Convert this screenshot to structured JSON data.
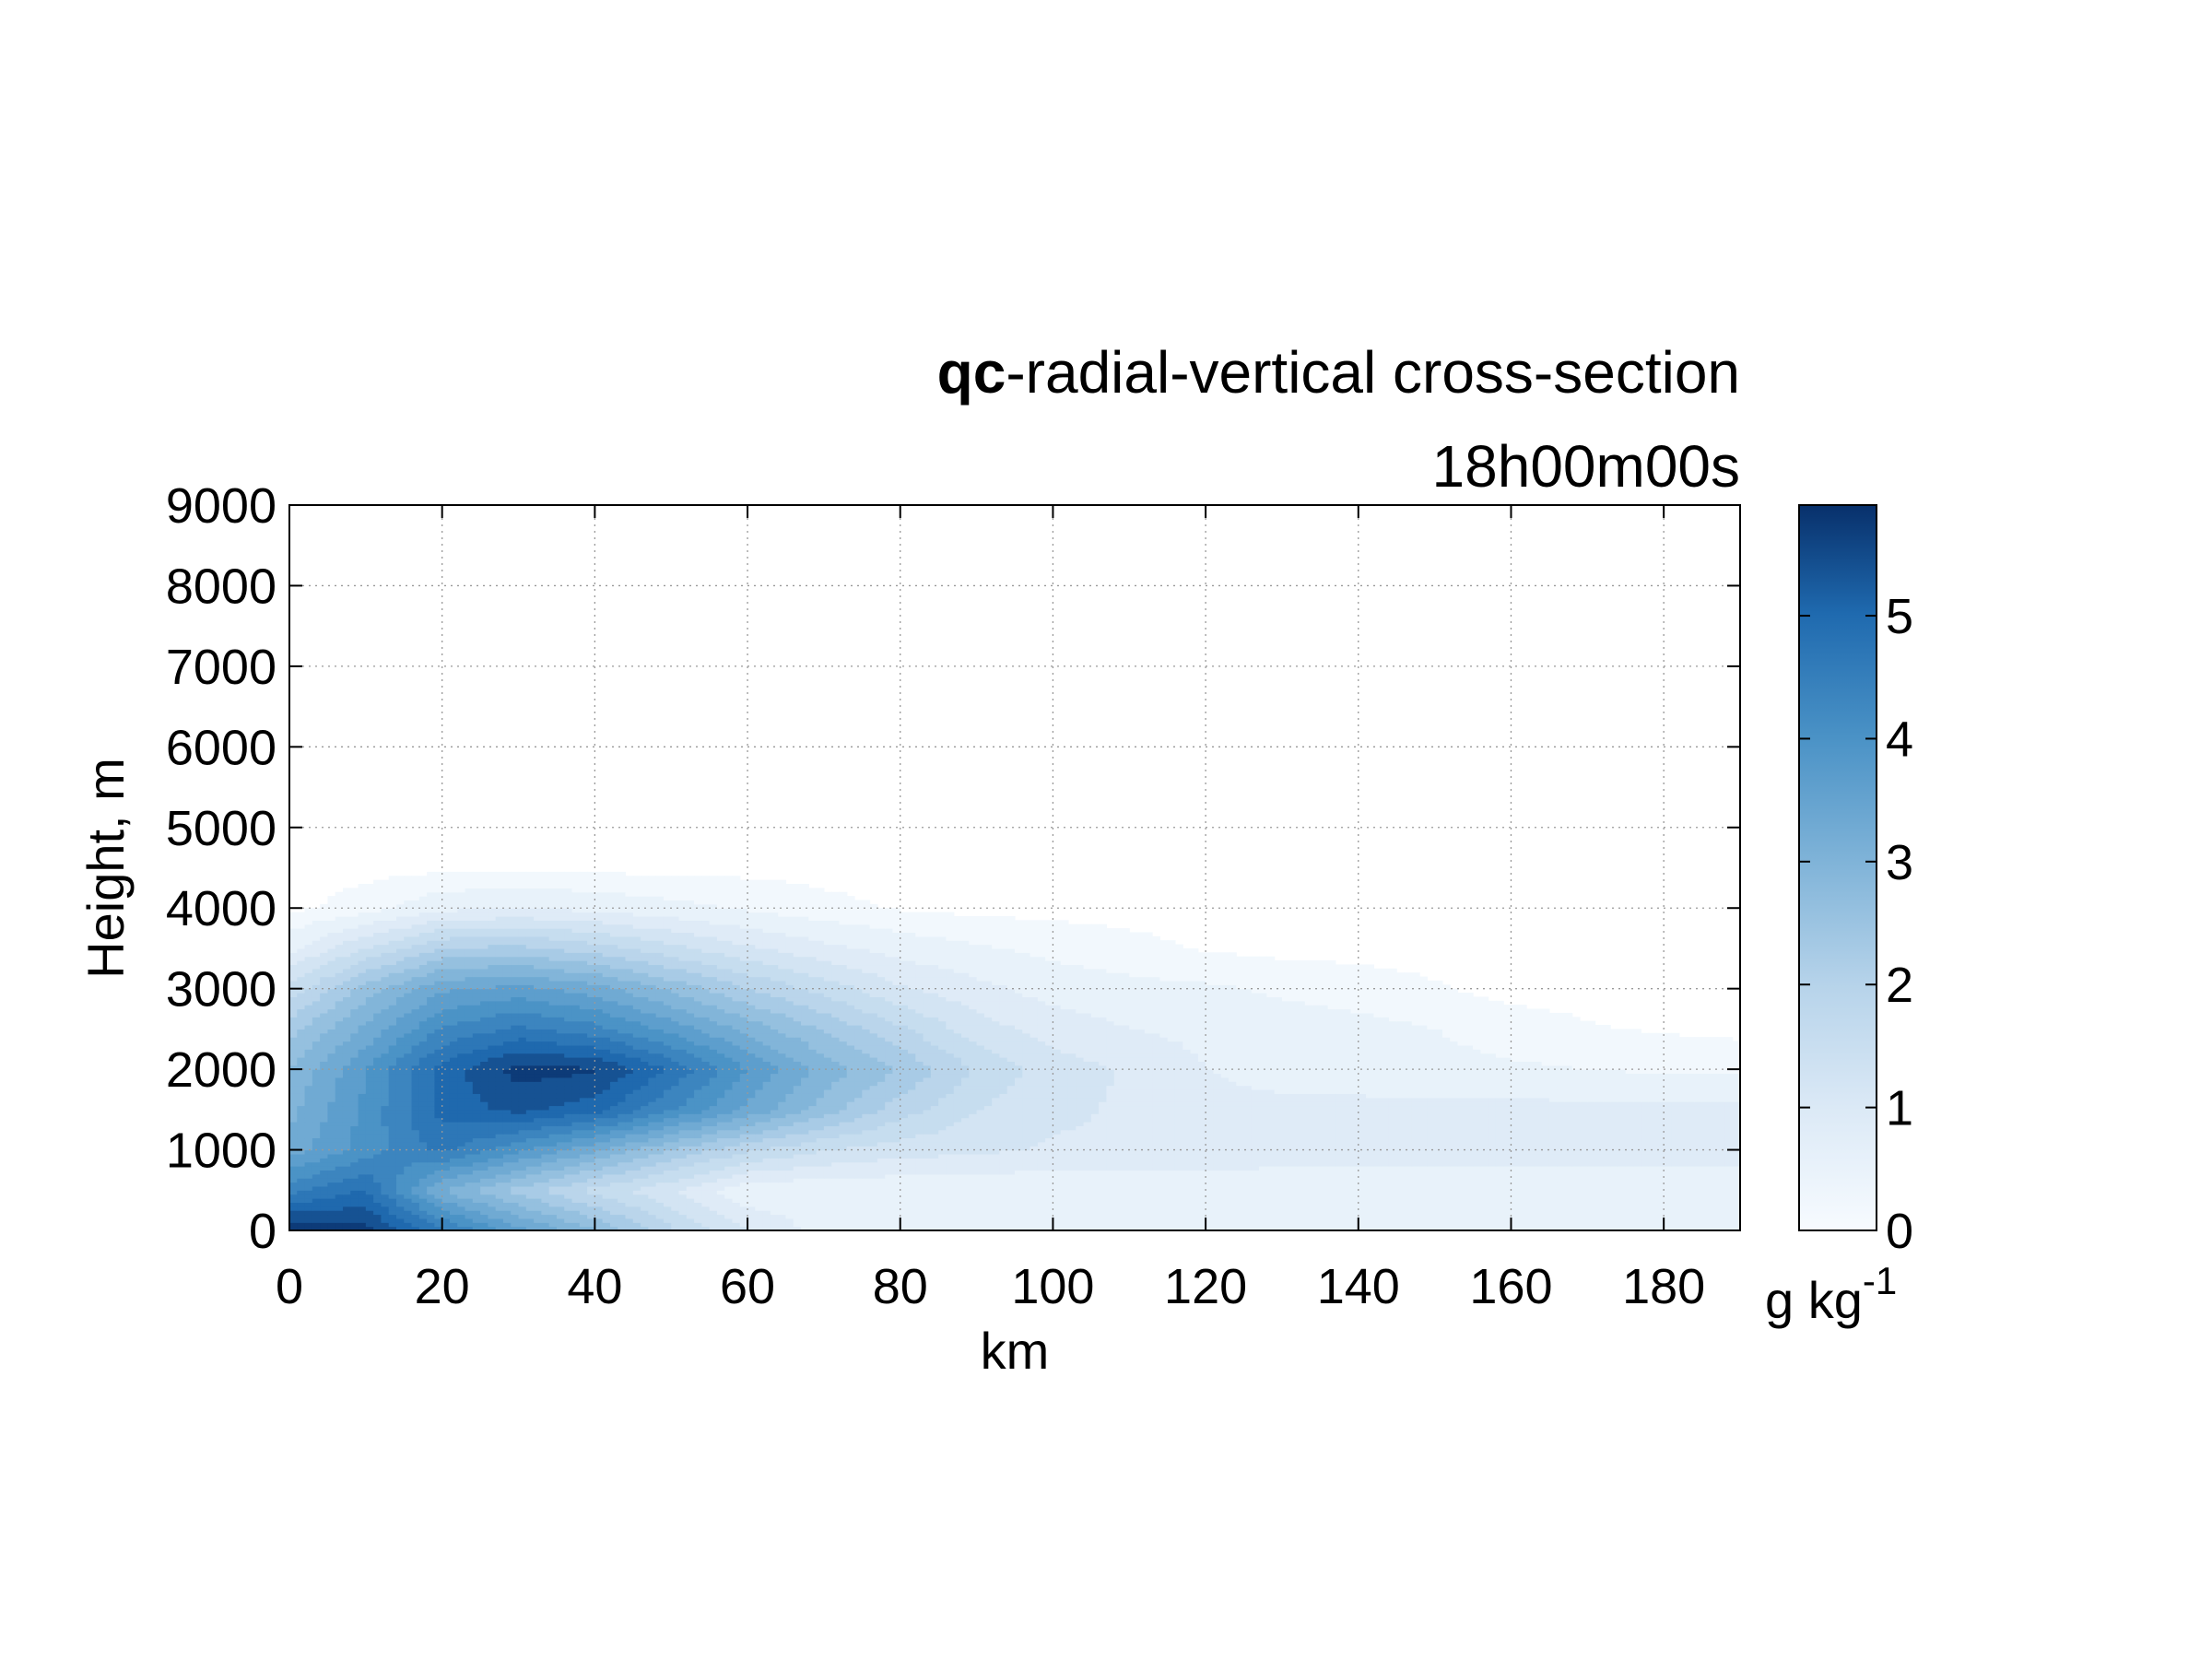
{
  "chart_data": {
    "type": "contour",
    "title_bold": "qc",
    "title_rest": "-radial-vertical cross-section",
    "subtitle": "18h00m00s",
    "xlabel": "km",
    "ylabel": "Height, m",
    "xlim": [
      0,
      190
    ],
    "ylim": [
      0,
      9000
    ],
    "xticks": [
      0,
      20,
      40,
      60,
      80,
      100,
      120,
      140,
      160,
      180
    ],
    "yticks": [
      0,
      1000,
      2000,
      3000,
      4000,
      5000,
      6000,
      7000,
      8000,
      9000
    ],
    "grid": true,
    "colorbar": {
      "label": "g kg",
      "label_superscript": "-1",
      "range": [
        0,
        5.9
      ],
      "ticks": [
        0,
        1,
        2,
        3,
        4,
        5
      ],
      "color_low": "#f7fbff",
      "color_high": "#08306b"
    },
    "x": [
      0,
      10,
      20,
      30,
      40,
      50,
      60,
      70,
      80,
      90,
      100,
      110,
      120,
      130,
      140,
      150,
      160,
      170,
      180,
      190
    ],
    "y": [
      0,
      500,
      1000,
      1500,
      2000,
      2500,
      3000,
      3500,
      4000,
      4500
    ],
    "values": [
      [
        5.9,
        5.7,
        4.6,
        3.6,
        2.8,
        1.8,
        1.1,
        0.55,
        0.45,
        0.45,
        0.45,
        0.45,
        0.45,
        0.45,
        0.45,
        0.45,
        0.45,
        0.45,
        0.45,
        0.45
      ],
      [
        4.4,
        4.9,
        3.1,
        2.3,
        1.6,
        1.1,
        0.4,
        0.4,
        0.4,
        0.4,
        0.4,
        0.4,
        0.4,
        0.4,
        0.4,
        0.4,
        0.4,
        0.4,
        0.4,
        0.4
      ],
      [
        3.3,
        4.0,
        4.6,
        3.9,
        3.2,
        2.4,
        1.8,
        1.4,
        1.2,
        1.1,
        1.0,
        1.0,
        1.0,
        0.9,
        0.9,
        0.9,
        0.9,
        0.9,
        0.9,
        0.9
      ],
      [
        3.0,
        3.9,
        5.0,
        5.3,
        5.0,
        4.2,
        3.4,
        2.6,
        1.9,
        1.4,
        1.1,
        1.0,
        0.8,
        0.8,
        0.8,
        0.8,
        0.8,
        0.8,
        0.8,
        0.8
      ],
      [
        2.8,
        3.8,
        5.0,
        5.7,
        5.6,
        4.8,
        3.8,
        3.0,
        2.4,
        1.7,
        1.2,
        1.0,
        0.7,
        0.55,
        0.5,
        0.45,
        0.4,
        0.35,
        0.3,
        0.3
      ],
      [
        2.3,
        3.2,
        4.2,
        4.6,
        4.3,
        3.7,
        3.0,
        2.4,
        1.8,
        1.2,
        0.9,
        0.7,
        0.6,
        0.5,
        0.45,
        0.35,
        0.2,
        0.1,
        0.05,
        0.0
      ],
      [
        1.5,
        2.6,
        3.4,
        3.6,
        3.3,
        2.7,
        2.1,
        1.6,
        1.1,
        0.8,
        0.55,
        0.45,
        0.4,
        0.3,
        0.2,
        0.1,
        0.0,
        0.0,
        0.0,
        0.0
      ],
      [
        0.6,
        1.4,
        2.1,
        2.2,
        1.9,
        1.5,
        1.1,
        0.8,
        0.55,
        0.4,
        0.25,
        0.15,
        0.05,
        0.0,
        0.0,
        0.0,
        0.0,
        0.0,
        0.0,
        0.0
      ],
      [
        0.0,
        0.2,
        0.6,
        0.7,
        0.6,
        0.45,
        0.3,
        0.15,
        0.05,
        0.0,
        0.0,
        0.0,
        0.0,
        0.0,
        0.0,
        0.0,
        0.0,
        0.0,
        0.0,
        0.0
      ],
      [
        0.0,
        0.0,
        0.0,
        0.0,
        0.0,
        0.0,
        0.0,
        0.0,
        0.0,
        0.0,
        0.0,
        0.0,
        0.0,
        0.0,
        0.0,
        0.0,
        0.0,
        0.0,
        0.0,
        0.0
      ]
    ]
  }
}
